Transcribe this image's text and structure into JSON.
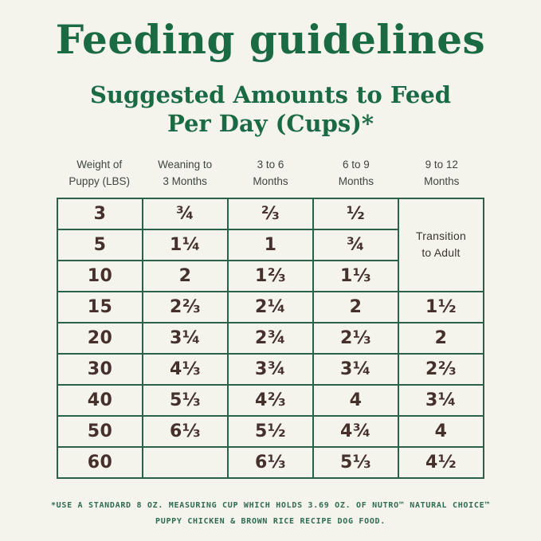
{
  "page": {
    "title": "Feeding guidelines",
    "subtitle_line1": "Suggested Amounts to Feed",
    "subtitle_line2": "Per Day (Cups)*"
  },
  "table": {
    "headers": [
      [
        "Weight of",
        "Puppy (LBS)"
      ],
      [
        "Weaning to",
        "3 Months"
      ],
      [
        "3 to 6",
        "Months"
      ],
      [
        "6 to 9",
        "Months"
      ],
      [
        "9 to 12",
        "Months"
      ]
    ],
    "merged_cell": {
      "line1": "Transition",
      "line2": "to Adult",
      "rowspan": 3
    },
    "rows": [
      [
        "3",
        "¾",
        "⅔",
        "½"
      ],
      [
        "5",
        "1¼",
        "1",
        "¾"
      ],
      [
        "10",
        "2",
        "1⅔",
        "1⅓"
      ],
      [
        "15",
        "2⅔",
        "2¼",
        "2",
        "1½"
      ],
      [
        "20",
        "3¼",
        "2¾",
        "2⅓",
        "2"
      ],
      [
        "30",
        "4⅓",
        "3¾",
        "3¼",
        "2⅔"
      ],
      [
        "40",
        "5⅓",
        "4⅔",
        "4",
        "3¼"
      ],
      [
        "50",
        "6⅓",
        "5½",
        "4¾",
        "4"
      ],
      [
        "60",
        "",
        "6⅓",
        "5⅓",
        "4½"
      ]
    ]
  },
  "footnote": {
    "line1": "*USE A STANDARD 8 OZ. MEASURING CUP WHICH HOLDS 3.69 OZ. OF NUTRO™ NATURAL CHOICE™",
    "line2": "PUPPY CHICKEN & BROWN RICE RECIPE DOG FOOD."
  },
  "colors": {
    "background": "#F4F3EC",
    "accent_green": "#1A6A43",
    "border_green": "#2A6148",
    "cell_text_brown": "#45302B",
    "header_text": "#3E443E",
    "footnote_green": "#2F6B4E"
  },
  "chart_data": {
    "type": "table",
    "title": "Suggested Amounts to Feed Per Day (Cups)*",
    "columns": [
      "Weight of Puppy (LBS)",
      "Weaning to 3 Months",
      "3 to 6 Months",
      "6 to 9 Months",
      "9 to 12 Months"
    ],
    "rows": [
      [
        "3",
        "3/4",
        "2/3",
        "1/2",
        "Transition to Adult"
      ],
      [
        "5",
        "1 1/4",
        "1",
        "3/4",
        "Transition to Adult"
      ],
      [
        "10",
        "2",
        "1 2/3",
        "1 1/3",
        "Transition to Adult"
      ],
      [
        "15",
        "2 2/3",
        "2 1/4",
        "2",
        "1 1/2"
      ],
      [
        "20",
        "3 1/4",
        "2 3/4",
        "2 1/3",
        "2"
      ],
      [
        "30",
        "4 1/3",
        "3 3/4",
        "3 1/4",
        "2 2/3"
      ],
      [
        "40",
        "5 1/3",
        "4 2/3",
        "4",
        "3 1/4"
      ],
      [
        "50",
        "6 1/3",
        "5 1/2",
        "4 3/4",
        "4"
      ],
      [
        "60",
        "",
        "6 1/3",
        "5 1/3",
        "4 1/2"
      ]
    ],
    "notes": "*Use a standard 8 oz. measuring cup which holds 3.69 oz. of NUTRO(TM) Natural Choice(TM) Puppy Chicken & Brown Rice Recipe dog food."
  }
}
